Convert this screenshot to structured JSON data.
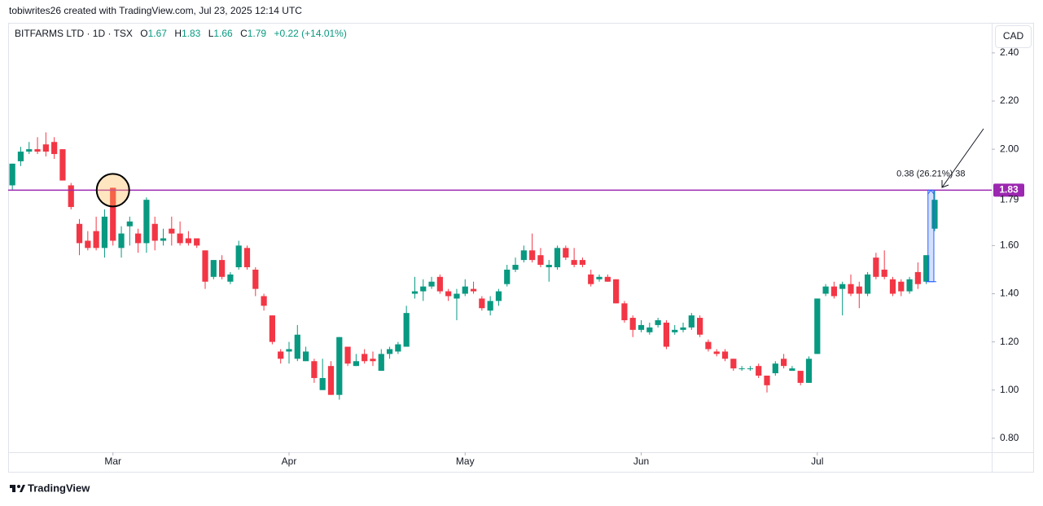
{
  "header": {
    "creator": "tobiwrites26 created with TradingView.com, Jul 23, 2025 12:14 UTC"
  },
  "footer": {
    "brand": "TradingView"
  },
  "chart_data": {
    "type": "candlestick",
    "currency": "CAD",
    "legend": {
      "symbol": "BITFARMS LTD · 1D · TSX",
      "fields": [
        {
          "label": "O",
          "value": 1.67
        },
        {
          "label": "H",
          "value": 1.83
        },
        {
          "label": "L",
          "value": 1.66
        },
        {
          "label": "C",
          "value": 1.79
        }
      ],
      "change": "+0.22 (+14.01%)"
    },
    "up_color": "#089981",
    "down_color": "#f23645",
    "open": [
      1.85,
      1.95,
      1.99,
      2.0,
      2.02,
      2.03,
      2.0,
      1.85,
      1.69,
      1.62,
      1.66,
      1.59,
      1.84,
      1.59,
      1.68,
      1.65,
      1.61,
      1.69,
      1.62,
      1.67,
      1.65,
      1.63,
      1.63,
      1.58,
      1.47,
      1.54,
      1.45,
      1.51,
      1.59,
      1.5,
      1.39,
      1.31,
      1.16,
      1.16,
      1.13,
      1.12,
      1.12,
      1.0,
      1.1,
      0.98,
      1.18,
      1.1,
      1.15,
      1.13,
      1.08,
      1.15,
      1.16,
      1.18,
      1.4,
      1.41,
      1.43,
      1.47,
      1.41,
      1.38,
      1.4,
      1.42,
      1.38,
      1.33,
      1.37,
      1.44,
      1.5,
      1.54,
      1.58,
      1.56,
      1.51,
      1.51,
      1.59,
      1.54,
      1.54,
      1.48,
      1.46,
      1.47,
      1.46,
      1.36,
      1.3,
      1.25,
      1.24,
      1.27,
      1.28,
      1.24,
      1.25,
      1.26,
      1.3,
      1.2,
      1.16,
      1.16,
      1.13,
      1.09,
      1.09,
      1.1,
      1.06,
      1.07,
      1.13,
      1.08,
      1.08,
      1.03,
      1.15,
      1.4,
      1.43,
      1.42,
      1.44,
      1.43,
      1.4,
      1.55,
      1.5,
      1.46,
      1.45,
      1.41,
      1.49,
      1.45,
      1.67
    ],
    "high": [
      1.94,
      2.01,
      2.03,
      2.05,
      2.07,
      2.05,
      2.0,
      1.86,
      1.71,
      1.66,
      1.72,
      1.75,
      1.84,
      1.68,
      1.72,
      1.67,
      1.8,
      1.72,
      1.67,
      1.72,
      1.7,
      1.66,
      1.63,
      1.58,
      1.54,
      1.56,
      1.49,
      1.62,
      1.6,
      1.51,
      1.4,
      1.31,
      1.17,
      1.2,
      1.27,
      1.18,
      1.13,
      1.13,
      1.12,
      1.22,
      1.18,
      1.15,
      1.17,
      1.16,
      1.17,
      1.18,
      1.2,
      1.35,
      1.47,
      1.46,
      1.47,
      1.48,
      1.42,
      1.42,
      1.46,
      1.45,
      1.39,
      1.39,
      1.42,
      1.52,
      1.55,
      1.6,
      1.65,
      1.59,
      1.54,
      1.6,
      1.6,
      1.59,
      1.55,
      1.5,
      1.48,
      1.48,
      1.46,
      1.37,
      1.31,
      1.29,
      1.28,
      1.3,
      1.29,
      1.27,
      1.28,
      1.32,
      1.31,
      1.21,
      1.17,
      1.17,
      1.13,
      1.1,
      1.1,
      1.11,
      1.06,
      1.12,
      1.15,
      1.1,
      1.08,
      1.14,
      1.38,
      1.44,
      1.45,
      1.45,
      1.48,
      1.45,
      1.49,
      1.57,
      1.58,
      1.47,
      1.46,
      1.47,
      1.53,
      1.56,
      1.83
    ],
    "low": [
      1.83,
      1.93,
      1.98,
      1.98,
      1.97,
      1.96,
      1.87,
      1.75,
      1.56,
      1.58,
      1.58,
      1.55,
      1.6,
      1.55,
      1.6,
      1.57,
      1.57,
      1.58,
      1.6,
      1.6,
      1.6,
      1.6,
      1.59,
      1.42,
      1.46,
      1.46,
      1.44,
      1.5,
      1.5,
      1.39,
      1.33,
      1.19,
      1.11,
      1.11,
      1.12,
      1.12,
      1.03,
      1.0,
      0.98,
      0.96,
      1.1,
      1.1,
      1.11,
      1.1,
      1.08,
      1.13,
      1.15,
      1.18,
      1.38,
      1.37,
      1.42,
      1.4,
      1.37,
      1.29,
      1.39,
      1.4,
      1.33,
      1.31,
      1.35,
      1.43,
      1.49,
      1.53,
      1.53,
      1.51,
      1.45,
      1.5,
      1.54,
      1.51,
      1.51,
      1.43,
      1.45,
      1.45,
      1.36,
      1.28,
      1.22,
      1.24,
      1.23,
      1.26,
      1.17,
      1.23,
      1.24,
      1.25,
      1.22,
      1.16,
      1.14,
      1.12,
      1.08,
      1.08,
      1.08,
      1.05,
      0.99,
      1.06,
      1.09,
      1.08,
      1.02,
      1.03,
      1.15,
      1.39,
      1.38,
      1.31,
      1.39,
      1.34,
      1.39,
      1.46,
      1.46,
      1.39,
      1.39,
      1.4,
      1.42,
      1.44,
      1.66
    ],
    "close": [
      1.94,
      1.99,
      2.0,
      1.99,
      1.99,
      1.98,
      1.87,
      1.76,
      1.61,
      1.59,
      1.59,
      1.72,
      1.62,
      1.65,
      1.7,
      1.61,
      1.79,
      1.62,
      1.63,
      1.65,
      1.61,
      1.61,
      1.6,
      1.45,
      1.54,
      1.47,
      1.48,
      1.6,
      1.51,
      1.42,
      1.35,
      1.2,
      1.13,
      1.17,
      1.23,
      1.16,
      1.05,
      1.05,
      0.98,
      1.22,
      1.11,
      1.12,
      1.12,
      1.12,
      1.15,
      1.17,
      1.19,
      1.32,
      1.41,
      1.43,
      1.45,
      1.41,
      1.39,
      1.4,
      1.43,
      1.41,
      1.34,
      1.37,
      1.41,
      1.5,
      1.52,
      1.58,
      1.54,
      1.52,
      1.52,
      1.59,
      1.55,
      1.52,
      1.52,
      1.44,
      1.47,
      1.45,
      1.36,
      1.29,
      1.25,
      1.27,
      1.26,
      1.29,
      1.18,
      1.25,
      1.26,
      1.31,
      1.23,
      1.17,
      1.15,
      1.13,
      1.09,
      1.09,
      1.09,
      1.06,
      1.02,
      1.11,
      1.1,
      1.09,
      1.03,
      1.13,
      1.38,
      1.43,
      1.39,
      1.44,
      1.4,
      1.4,
      1.48,
      1.47,
      1.47,
      1.4,
      1.41,
      1.46,
      1.44,
      1.56,
      1.79
    ],
    "xlim": [
      -0.5,
      116.8
    ],
    "xticks": [
      {
        "value": 12,
        "label": "Mar"
      },
      {
        "value": 33,
        "label": "Apr"
      },
      {
        "value": 54,
        "label": "May"
      },
      {
        "value": 75,
        "label": "Jun"
      },
      {
        "value": 96,
        "label": "Jul"
      }
    ],
    "ylim": [
      0.742,
      2.518
    ],
    "yticks": [
      {
        "value": 0.8,
        "label": "0.80"
      },
      {
        "value": 1.0,
        "label": "1.00"
      },
      {
        "value": 1.2,
        "label": "1.20"
      },
      {
        "value": 1.4,
        "label": "1.40"
      },
      {
        "value": 1.6,
        "label": "1.60"
      },
      {
        "value": 2.0,
        "label": "2.00"
      },
      {
        "value": 2.2,
        "label": "2.20"
      },
      {
        "value": 2.4,
        "label": "2.40"
      }
    ],
    "last_price": 1.79,
    "horizontal_line": {
      "value": 1.83,
      "color": "#9c27b0"
    },
    "measure": {
      "from": 1.45,
      "to": 1.83,
      "label": "0.38 (26.21%) 38"
    },
    "grid": false
  }
}
